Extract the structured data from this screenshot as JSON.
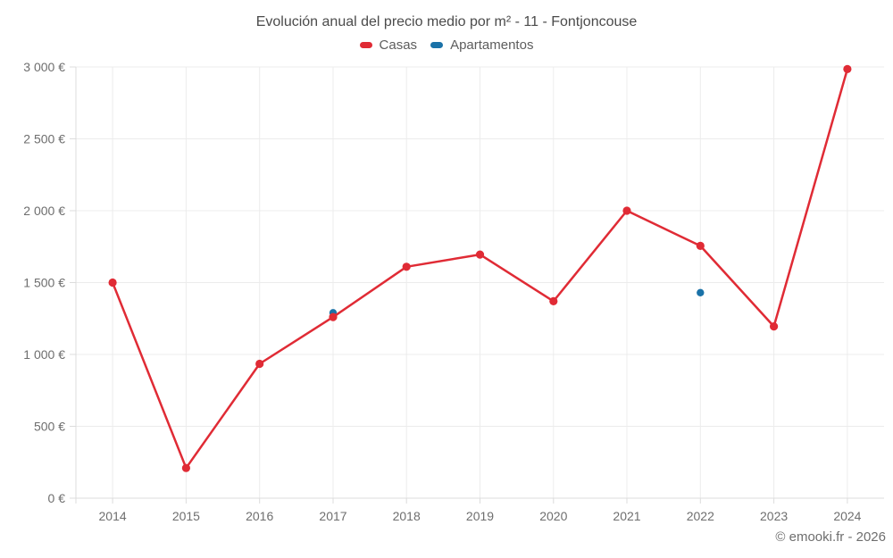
{
  "footer_credit": "© emooki.fr - 2026",
  "colors": {
    "casas": "#e02b35",
    "apartamentos": "#1a72a8",
    "grid": "#ececec",
    "axis": "#dcdcdc",
    "label_text": "#6e6e6e",
    "title_text": "#4b4b4b"
  },
  "chart_data": {
    "type": "line",
    "title": "Evolución anual del precio medio por m² - 11 - Fontjoncouse",
    "categories": [
      "2014",
      "2015",
      "2016",
      "2017",
      "2018",
      "2019",
      "2020",
      "2021",
      "2022",
      "2023",
      "2024"
    ],
    "series": [
      {
        "name": "Casas",
        "color": "#e02b35",
        "type": "line-with-markers",
        "values": [
          1500,
          210,
          935,
          1260,
          1610,
          1695,
          1370,
          2000,
          1755,
          1195,
          2985
        ]
      },
      {
        "name": "Apartamentos",
        "color": "#1a72a8",
        "type": "scatter",
        "points": [
          {
            "category": "2017",
            "value": 1290
          },
          {
            "category": "2022",
            "value": 1430
          }
        ]
      }
    ],
    "xlabel": "",
    "ylabel": "",
    "ylim": [
      0,
      3000
    ],
    "ytick_step": 500,
    "yticks": [
      {
        "value": 0,
        "label": "0 €"
      },
      {
        "value": 500,
        "label": "500 €"
      },
      {
        "value": 1000,
        "label": "1 000 €"
      },
      {
        "value": 1500,
        "label": "1 500 €"
      },
      {
        "value": 2000,
        "label": "2 000 €"
      },
      {
        "value": 2500,
        "label": "2 500 €"
      },
      {
        "value": 3000,
        "label": "3 000 €"
      }
    ],
    "grid": true,
    "legend_position": "top"
  }
}
